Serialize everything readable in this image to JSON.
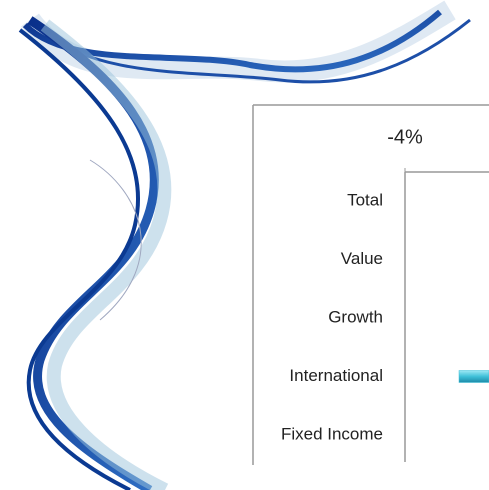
{
  "chart_data": {
    "type": "bar",
    "orientation": "horizontal",
    "categories": [
      "Total",
      "Value",
      "Growth",
      "International",
      "Fixed Income"
    ],
    "values": [
      null,
      null,
      null,
      -3.1,
      null
    ],
    "color": "#3fc0d8",
    "xlim": [
      -4,
      -2.6
    ],
    "xticks": [
      {
        "value": -4,
        "label": "-4%"
      }
    ]
  }
}
